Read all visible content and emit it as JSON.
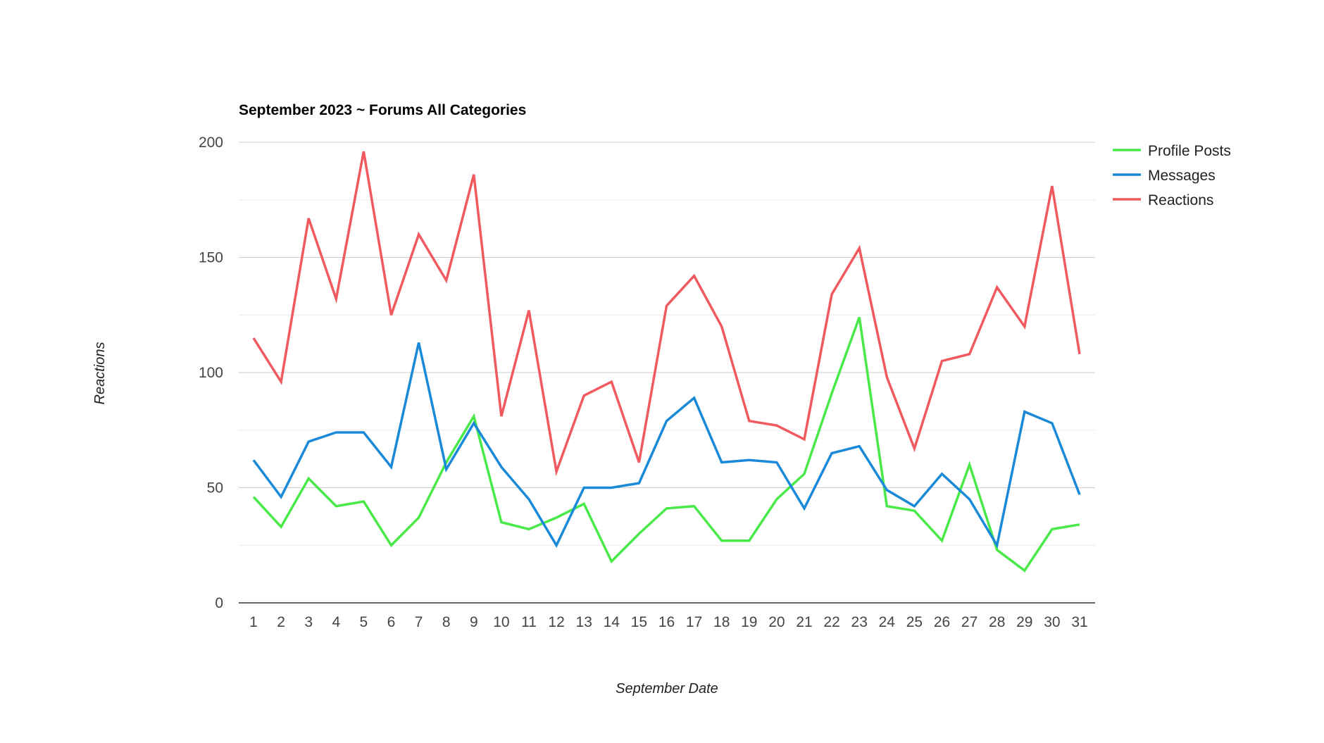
{
  "chart_data": {
    "type": "line",
    "title": "September 2023 ~ Forums All Categories",
    "xlabel": "September Date",
    "ylabel": "Reactions",
    "categories": [
      "1",
      "2",
      "3",
      "4",
      "5",
      "6",
      "7",
      "8",
      "9",
      "10",
      "11",
      "12",
      "13",
      "14",
      "15",
      "16",
      "17",
      "18",
      "19",
      "20",
      "21",
      "22",
      "23",
      "24",
      "25",
      "26",
      "27",
      "28",
      "29",
      "30",
      "31"
    ],
    "ylim": [
      0,
      200
    ],
    "yticks": [
      "0",
      "50",
      "100",
      "150",
      "200"
    ],
    "grid": true,
    "legend_position": "right",
    "series": [
      {
        "name": "Profile Posts",
        "color": "#4ae94a",
        "values": [
          46,
          33,
          54,
          42,
          44,
          25,
          37,
          61,
          81,
          35,
          32,
          37,
          43,
          18,
          30,
          41,
          42,
          27,
          27,
          45,
          56,
          91,
          124,
          42,
          40,
          27,
          60,
          23,
          14,
          32,
          34
        ]
      },
      {
        "name": "Messages",
        "color": "#1a8ad8",
        "values": [
          62,
          46,
          70,
          74,
          74,
          59,
          113,
          58,
          78,
          59,
          45,
          25,
          50,
          50,
          52,
          79,
          89,
          61,
          62,
          61,
          41,
          65,
          68,
          49,
          42,
          56,
          45,
          25,
          83,
          78,
          47
        ]
      },
      {
        "name": "Reactions",
        "color": "#f05a5f",
        "values": [
          115,
          96,
          167,
          132,
          196,
          125,
          160,
          140,
          186,
          81,
          127,
          57,
          90,
          96,
          61,
          129,
          142,
          120,
          79,
          77,
          71,
          134,
          154,
          98,
          67,
          105,
          108,
          137,
          120,
          181,
          108
        ]
      }
    ]
  }
}
